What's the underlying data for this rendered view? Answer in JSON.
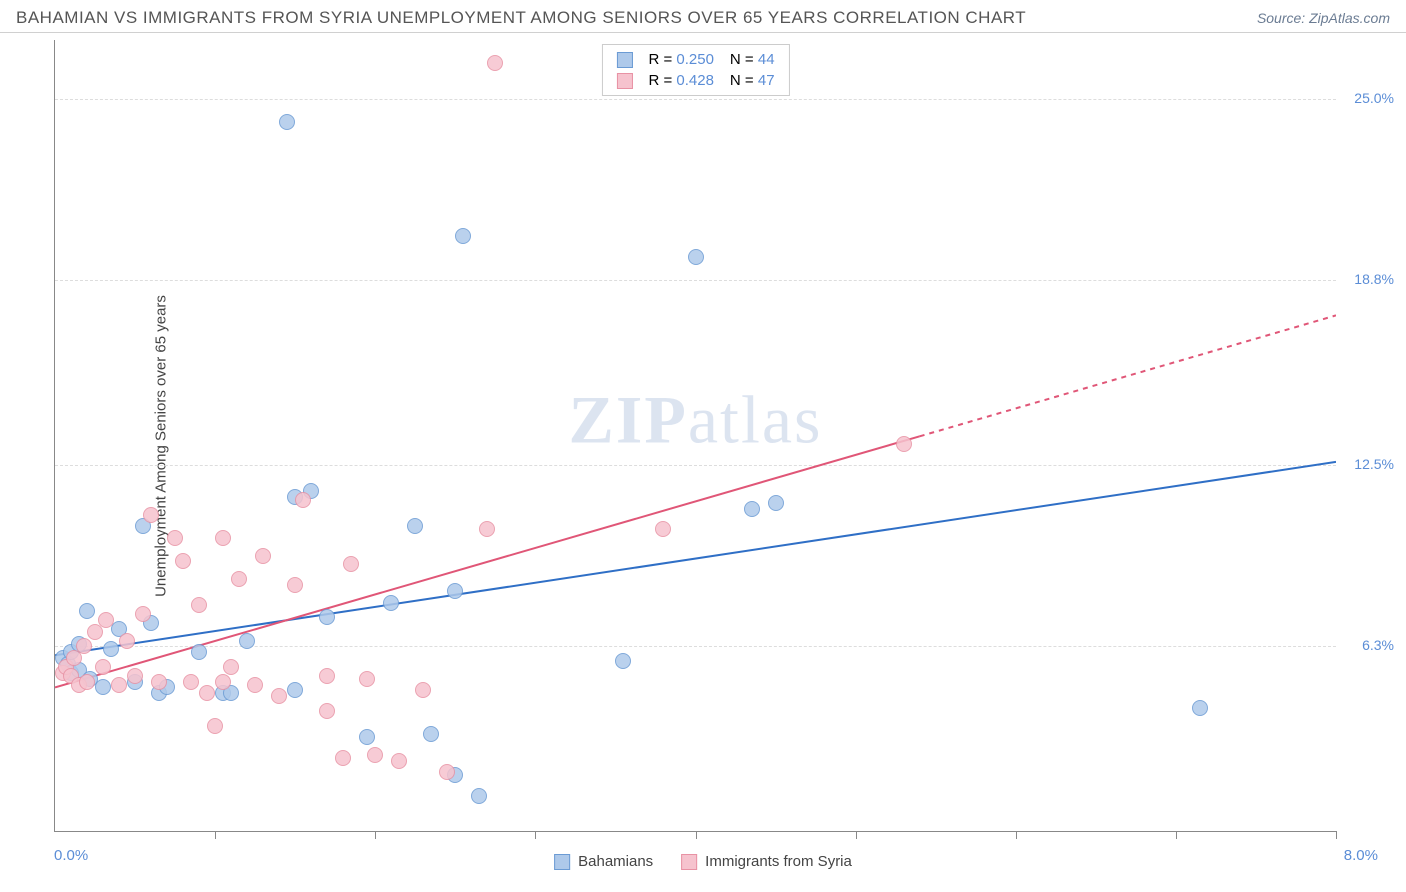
{
  "header": {
    "title": "BAHAMIAN VS IMMIGRANTS FROM SYRIA UNEMPLOYMENT AMONG SENIORS OVER 65 YEARS CORRELATION CHART",
    "source_label": "Source: ",
    "source_name": "ZipAtlas.com"
  },
  "chart": {
    "type": "scatter",
    "y_axis_label": "Unemployment Among Seniors over 65 years",
    "xlim": [
      0.0,
      8.0
    ],
    "ylim": [
      0.0,
      27.0
    ],
    "ytick_labels": [
      {
        "v": 6.3,
        "text": "6.3%"
      },
      {
        "v": 12.5,
        "text": "12.5%"
      },
      {
        "v": 18.8,
        "text": "18.8%"
      },
      {
        "v": 25.0,
        "text": "25.0%"
      }
    ],
    "xlim_labels": {
      "min": "0.0%",
      "max": "8.0%"
    },
    "xtick_positions": [
      1.0,
      2.0,
      3.0,
      4.0,
      5.0,
      6.0,
      7.0,
      8.0
    ],
    "grid_color": "#dddddd",
    "axis_color": "#888888",
    "background_color": "#ffffff",
    "point_radius": 8,
    "watermark": "ZIPatlas",
    "series": [
      {
        "name": "Bahamians",
        "fill": "#aec9ea",
        "stroke": "#6b9bd4",
        "R": "0.250",
        "N": "44",
        "trendline": {
          "x1": 0.0,
          "y1": 6.0,
          "x2": 8.0,
          "y2": 12.6,
          "color": "#2f6fc6",
          "width": 2,
          "dash_after_x": null
        },
        "points": [
          [
            0.05,
            5.9
          ],
          [
            0.08,
            5.7
          ],
          [
            0.1,
            6.1
          ],
          [
            0.1,
            5.4
          ],
          [
            0.15,
            6.4
          ],
          [
            0.15,
            5.5
          ],
          [
            0.2,
            7.5
          ],
          [
            0.22,
            5.2
          ],
          [
            0.3,
            4.9
          ],
          [
            0.35,
            6.2
          ],
          [
            0.4,
            6.9
          ],
          [
            0.5,
            5.1
          ],
          [
            0.55,
            10.4
          ],
          [
            0.6,
            7.1
          ],
          [
            0.65,
            4.7
          ],
          [
            0.7,
            4.9
          ],
          [
            0.9,
            6.1
          ],
          [
            1.05,
            4.7
          ],
          [
            1.1,
            4.7
          ],
          [
            1.2,
            6.5
          ],
          [
            1.45,
            24.2
          ],
          [
            1.5,
            4.8
          ],
          [
            1.5,
            11.4
          ],
          [
            1.6,
            11.6
          ],
          [
            1.7,
            7.3
          ],
          [
            1.95,
            3.2
          ],
          [
            2.1,
            7.8
          ],
          [
            2.25,
            10.4
          ],
          [
            2.35,
            3.3
          ],
          [
            2.5,
            8.2
          ],
          [
            2.5,
            1.9
          ],
          [
            2.55,
            20.3
          ],
          [
            2.65,
            1.2
          ],
          [
            4.0,
            19.6
          ],
          [
            3.55,
            5.8
          ],
          [
            4.35,
            11.0
          ],
          [
            4.5,
            11.2
          ],
          [
            7.15,
            4.2
          ]
        ]
      },
      {
        "name": "Immigrants from Syria",
        "fill": "#f6c3ce",
        "stroke": "#e892a4",
        "R": "0.428",
        "N": "47",
        "trendline": {
          "x1": 0.0,
          "y1": 4.9,
          "x2": 8.0,
          "y2": 17.6,
          "color": "#e05677",
          "width": 2,
          "dash_after_x": 5.4
        },
        "points": [
          [
            0.05,
            5.4
          ],
          [
            0.07,
            5.6
          ],
          [
            0.1,
            5.3
          ],
          [
            0.12,
            5.9
          ],
          [
            0.15,
            5.0
          ],
          [
            0.18,
            6.3
          ],
          [
            0.2,
            5.1
          ],
          [
            0.25,
            6.8
          ],
          [
            0.3,
            5.6
          ],
          [
            0.32,
            7.2
          ],
          [
            0.4,
            5.0
          ],
          [
            0.45,
            6.5
          ],
          [
            0.5,
            5.3
          ],
          [
            0.55,
            7.4
          ],
          [
            0.6,
            10.8
          ],
          [
            0.65,
            5.1
          ],
          [
            0.75,
            10.0
          ],
          [
            0.8,
            9.2
          ],
          [
            0.85,
            5.1
          ],
          [
            0.9,
            7.7
          ],
          [
            0.95,
            4.7
          ],
          [
            1.0,
            3.6
          ],
          [
            1.05,
            10.0
          ],
          [
            1.05,
            5.1
          ],
          [
            1.1,
            5.6
          ],
          [
            1.15,
            8.6
          ],
          [
            1.25,
            5.0
          ],
          [
            1.3,
            9.4
          ],
          [
            1.4,
            4.6
          ],
          [
            1.5,
            8.4
          ],
          [
            1.55,
            11.3
          ],
          [
            1.7,
            5.3
          ],
          [
            1.7,
            4.1
          ],
          [
            1.8,
            2.5
          ],
          [
            1.85,
            9.1
          ],
          [
            1.95,
            5.2
          ],
          [
            2.0,
            2.6
          ],
          [
            2.15,
            2.4
          ],
          [
            2.3,
            4.8
          ],
          [
            2.45,
            2.0
          ],
          [
            2.7,
            10.3
          ],
          [
            2.75,
            26.2
          ],
          [
            3.8,
            10.3
          ],
          [
            5.3,
            13.2
          ]
        ]
      }
    ]
  },
  "legend_top": {
    "r_label": "R =",
    "n_label": "N ="
  },
  "colors": {
    "label_blue": "#5b8dd6",
    "text": "#555555"
  }
}
